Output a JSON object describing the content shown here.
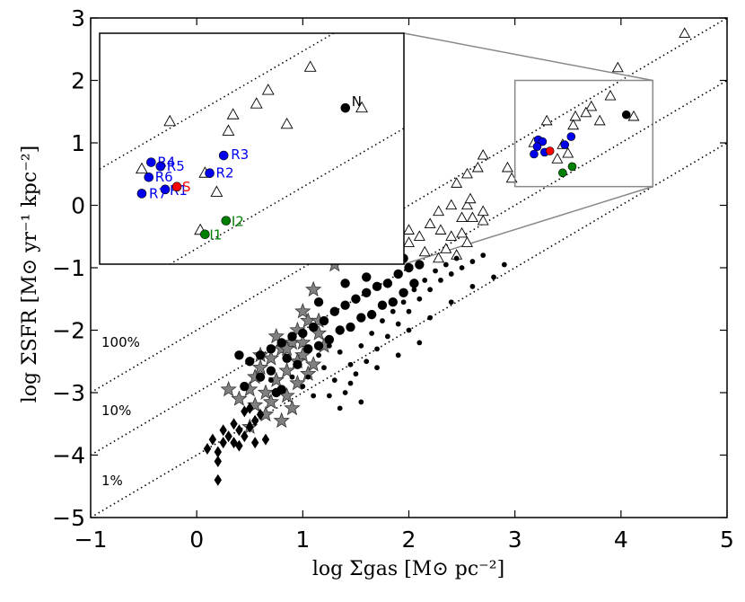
{
  "chart_data": {
    "type": "scatter",
    "title": "",
    "xlabel": "log Σgas [M⊙ pc⁻²]",
    "ylabel": "log ΣSFR [M⊙ yr⁻¹ kpc⁻²]",
    "xlim": [
      -1,
      5
    ],
    "ylim": [
      -5,
      3
    ],
    "xticks": [
      "−1",
      "0",
      "1",
      "2",
      "3",
      "4",
      "5"
    ],
    "yticks": [
      "−5",
      "−4",
      "−3",
      "−2",
      "−1",
      "0",
      "1",
      "2",
      "3"
    ],
    "grid": false,
    "efficiency_lines": [
      {
        "label": "100%",
        "y_at_x0": -2.0,
        "slope": 1
      },
      {
        "label": "10%",
        "y_at_x0": -3.0,
        "slope": 1
      },
      {
        "label": "1%",
        "y_at_x0": -4.0,
        "slope": 1
      }
    ],
    "inset": {
      "xlim": [
        3.0,
        4.3
      ],
      "ylim": [
        0.3,
        2.0
      ],
      "labeled_points": [
        {
          "label": "N",
          "x": 4.05,
          "y": 1.45,
          "color": "#000000"
        },
        {
          "label": "R1",
          "x": 3.28,
          "y": 0.85,
          "color": "#0000ee"
        },
        {
          "label": "R2",
          "x": 3.47,
          "y": 0.97,
          "color": "#0000ee"
        },
        {
          "label": "R3",
          "x": 3.53,
          "y": 1.1,
          "color": "#0000ee"
        },
        {
          "label": "R4",
          "x": 3.22,
          "y": 1.05,
          "color": "#0000ee"
        },
        {
          "label": "R5",
          "x": 3.26,
          "y": 1.02,
          "color": "#0000ee"
        },
        {
          "label": "R6",
          "x": 3.21,
          "y": 0.94,
          "color": "#0000ee"
        },
        {
          "label": "R7",
          "x": 3.18,
          "y": 0.82,
          "color": "#0000ee"
        },
        {
          "label": "S",
          "x": 3.33,
          "y": 0.87,
          "color": "#ff0000"
        },
        {
          "label": "I1",
          "x": 3.45,
          "y": 0.52,
          "color": "#008000"
        },
        {
          "label": "I2",
          "x": 3.54,
          "y": 0.62,
          "color": "#008000"
        }
      ],
      "triangles": [
        [
          3.18,
          1.0
        ],
        [
          3.3,
          1.35
        ],
        [
          3.45,
          0.97
        ],
        [
          3.57,
          1.4
        ],
        [
          3.67,
          1.48
        ],
        [
          3.72,
          1.58
        ],
        [
          3.9,
          1.75
        ],
        [
          3.97,
          2.08
        ],
        [
          4.12,
          1.45
        ],
        [
          3.55,
          1.28
        ],
        [
          3.5,
          0.83
        ],
        [
          3.43,
          0.55
        ],
        [
          3.8,
          1.33
        ]
      ]
    },
    "series": [
      {
        "marker": "triangle-open",
        "points": [
          [
            4.6,
            2.75
          ],
          [
            3.97,
            2.2
          ],
          [
            3.9,
            1.75
          ],
          [
            3.72,
            1.58
          ],
          [
            3.67,
            1.48
          ],
          [
            3.57,
            1.42
          ],
          [
            3.55,
            1.28
          ],
          [
            3.3,
            1.35
          ],
          [
            3.18,
            1.0
          ],
          [
            3.45,
            0.97
          ],
          [
            3.5,
            0.83
          ],
          [
            3.4,
            0.74
          ],
          [
            4.12,
            1.42
          ],
          [
            3.8,
            1.35
          ],
          [
            2.7,
            0.8
          ],
          [
            2.65,
            0.6
          ],
          [
            2.93,
            0.6
          ],
          [
            2.97,
            0.43
          ],
          [
            2.55,
            0.5
          ],
          [
            2.45,
            0.35
          ],
          [
            2.4,
            0.0
          ],
          [
            2.55,
            0.0
          ],
          [
            2.58,
            0.1
          ],
          [
            2.6,
            -0.2
          ],
          [
            2.7,
            -0.1
          ],
          [
            2.28,
            -0.1
          ],
          [
            2.2,
            -0.3
          ],
          [
            2.5,
            -0.2
          ],
          [
            2.4,
            -0.5
          ],
          [
            2.3,
            -0.4
          ],
          [
            2.1,
            -0.5
          ],
          [
            2.0,
            -0.6
          ],
          [
            2.35,
            -0.7
          ],
          [
            2.5,
            -0.45
          ],
          [
            2.15,
            -0.75
          ],
          [
            2.7,
            -0.25
          ],
          [
            2.0,
            -0.4
          ],
          [
            2.28,
            -0.85
          ],
          [
            2.55,
            -0.6
          ],
          [
            2.45,
            -0.8
          ]
        ]
      },
      {
        "marker": "star",
        "points": [
          [
            1.3,
            -0.95
          ],
          [
            1.1,
            -1.35
          ],
          [
            1.0,
            -1.7
          ],
          [
            1.05,
            -1.85
          ],
          [
            0.95,
            -2.0
          ],
          [
            1.15,
            -2.05
          ],
          [
            0.9,
            -2.2
          ],
          [
            1.2,
            -2.25
          ],
          [
            0.8,
            -2.3
          ],
          [
            1.0,
            -2.4
          ],
          [
            0.7,
            -2.45
          ],
          [
            1.1,
            -2.55
          ],
          [
            0.6,
            -2.6
          ],
          [
            0.85,
            -2.65
          ],
          [
            1.05,
            -2.7
          ],
          [
            0.55,
            -2.75
          ],
          [
            0.75,
            -2.8
          ],
          [
            0.95,
            -2.85
          ],
          [
            0.5,
            -2.95
          ],
          [
            0.65,
            -3.0
          ],
          [
            0.85,
            -3.05
          ],
          [
            0.7,
            -3.15
          ],
          [
            0.55,
            -3.2
          ],
          [
            0.9,
            -3.25
          ],
          [
            0.8,
            -3.45
          ],
          [
            0.5,
            -3.55
          ],
          [
            0.3,
            -2.95
          ],
          [
            0.4,
            -3.1
          ],
          [
            1.0,
            -2.2
          ],
          [
            0.95,
            -2.5
          ],
          [
            0.6,
            -2.4
          ],
          [
            0.75,
            -2.1
          ],
          [
            0.85,
            -2.3
          ],
          [
            1.15,
            -1.85
          ],
          [
            0.65,
            -3.35
          ]
        ]
      },
      {
        "marker": "diamond",
        "points": [
          [
            0.2,
            -4.4
          ],
          [
            0.2,
            -4.1
          ],
          [
            0.1,
            -3.9
          ],
          [
            0.25,
            -3.8
          ],
          [
            0.35,
            -3.8
          ],
          [
            0.45,
            -3.7
          ],
          [
            0.5,
            -3.55
          ],
          [
            0.55,
            -3.45
          ],
          [
            0.4,
            -3.6
          ],
          [
            0.3,
            -3.7
          ],
          [
            0.15,
            -3.75
          ],
          [
            0.2,
            -3.95
          ],
          [
            0.6,
            -3.35
          ],
          [
            0.5,
            -3.25
          ],
          [
            0.35,
            -3.5
          ],
          [
            0.65,
            -3.75
          ],
          [
            0.45,
            -3.3
          ],
          [
            0.25,
            -3.6
          ],
          [
            0.55,
            -3.8
          ],
          [
            0.4,
            -3.85
          ]
        ]
      },
      {
        "marker": "circle-large",
        "points": [
          [
            0.5,
            -2.5
          ],
          [
            0.6,
            -2.4
          ],
          [
            0.7,
            -2.3
          ],
          [
            0.8,
            -2.2
          ],
          [
            0.9,
            -2.1
          ],
          [
            1.0,
            -2.05
          ],
          [
            1.1,
            -1.95
          ],
          [
            1.2,
            -1.85
          ],
          [
            1.3,
            -1.7
          ],
          [
            1.4,
            -1.6
          ],
          [
            1.5,
            -1.5
          ],
          [
            1.6,
            -1.4
          ],
          [
            1.7,
            -1.3
          ],
          [
            1.8,
            -1.25
          ],
          [
            1.9,
            -1.1
          ],
          [
            2.0,
            -1.0
          ],
          [
            2.1,
            -0.95
          ],
          [
            0.6,
            -2.75
          ],
          [
            0.45,
            -2.9
          ],
          [
            0.8,
            -2.95
          ],
          [
            0.95,
            -2.55
          ],
          [
            1.15,
            -2.25
          ],
          [
            1.35,
            -2.0
          ],
          [
            1.55,
            -1.8
          ],
          [
            1.75,
            -1.6
          ],
          [
            1.95,
            -1.4
          ],
          [
            2.05,
            -1.25
          ],
          [
            1.25,
            -2.15
          ],
          [
            1.45,
            -1.95
          ],
          [
            1.65,
            -1.75
          ],
          [
            1.85,
            -1.55
          ],
          [
            0.85,
            -2.45
          ],
          [
            1.05,
            -2.3
          ],
          [
            0.7,
            -2.65
          ],
          [
            1.6,
            -1.15
          ],
          [
            1.4,
            -1.25
          ],
          [
            1.95,
            -0.85
          ],
          [
            0.4,
            -2.4
          ],
          [
            0.75,
            -3.0
          ],
          [
            1.15,
            -1.55
          ]
        ]
      },
      {
        "marker": "circle-small",
        "points": [
          [
            1.2,
            -2.6
          ],
          [
            1.3,
            -2.8
          ],
          [
            1.4,
            -3.0
          ],
          [
            1.5,
            -2.7
          ],
          [
            1.6,
            -2.5
          ],
          [
            1.7,
            -2.3
          ],
          [
            1.8,
            -2.1
          ],
          [
            1.9,
            -1.9
          ],
          [
            2.0,
            -1.7
          ],
          [
            2.1,
            -1.5
          ],
          [
            2.2,
            -1.35
          ],
          [
            2.3,
            -1.2
          ],
          [
            2.4,
            -1.1
          ],
          [
            2.5,
            -1.0
          ],
          [
            2.6,
            -0.9
          ],
          [
            2.7,
            -0.8
          ],
          [
            1.35,
            -2.35
          ],
          [
            1.45,
            -2.55
          ],
          [
            1.55,
            -2.25
          ],
          [
            1.65,
            -2.05
          ],
          [
            1.75,
            -1.85
          ],
          [
            1.85,
            -1.7
          ],
          [
            1.95,
            -1.55
          ],
          [
            2.05,
            -1.35
          ],
          [
            2.15,
            -1.2
          ],
          [
            2.25,
            -1.05
          ],
          [
            2.35,
            -0.95
          ],
          [
            2.45,
            -0.85
          ],
          [
            1.25,
            -2.25
          ],
          [
            1.15,
            -2.4
          ],
          [
            1.05,
            -2.75
          ],
          [
            1.25,
            -3.05
          ],
          [
            1.35,
            -3.25
          ],
          [
            1.55,
            -3.15
          ],
          [
            1.45,
            -2.85
          ],
          [
            2.0,
            -2.0
          ],
          [
            2.2,
            -1.8
          ],
          [
            2.4,
            -1.55
          ],
          [
            2.6,
            -1.3
          ],
          [
            2.8,
            -1.15
          ],
          [
            2.9,
            -0.95
          ],
          [
            1.7,
            -2.6
          ],
          [
            1.9,
            -2.4
          ],
          [
            2.1,
            -2.2
          ],
          [
            0.9,
            -2.75
          ],
          [
            1.0,
            -2.9
          ],
          [
            1.1,
            -3.05
          ],
          [
            0.7,
            -2.8
          ]
        ]
      }
    ]
  }
}
